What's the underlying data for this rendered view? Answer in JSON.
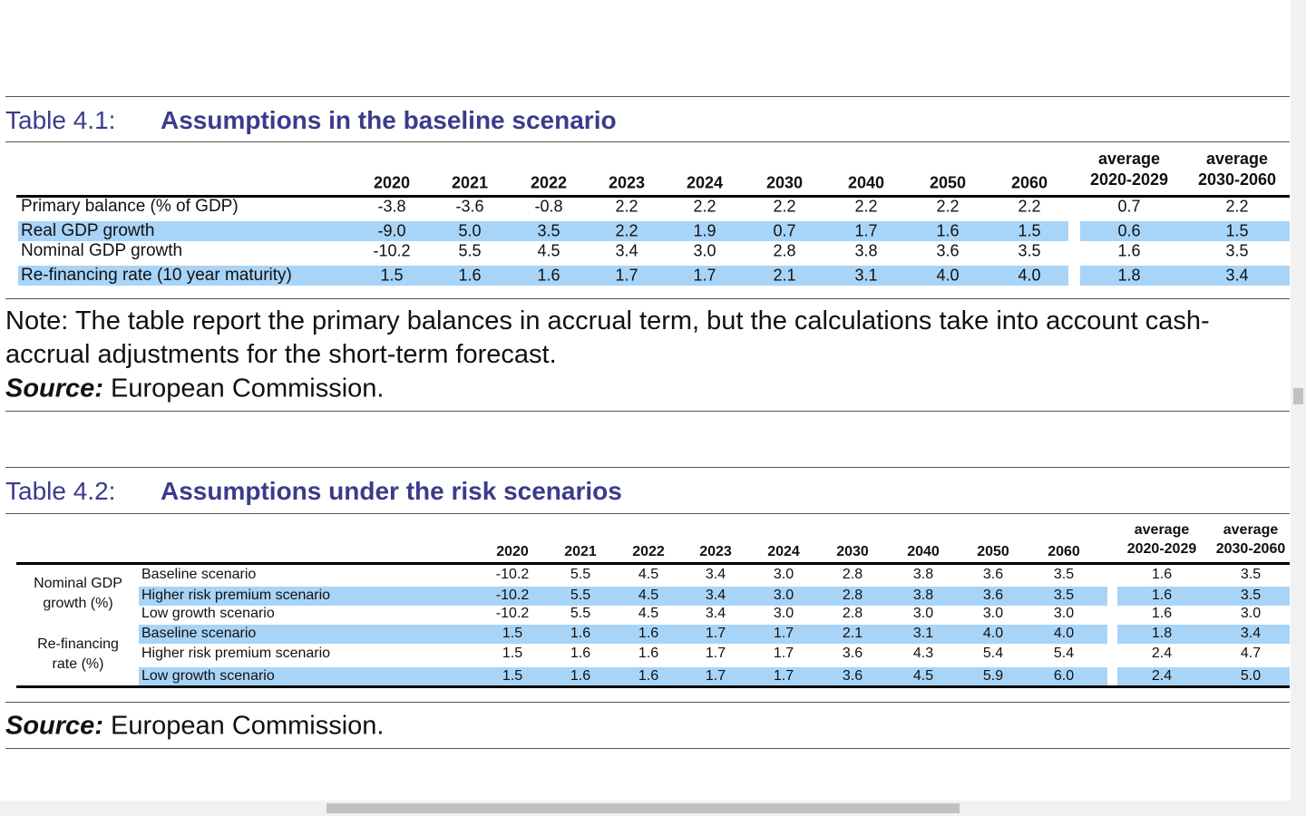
{
  "table1": {
    "label": "Table 4.1:",
    "title": "Assumptions in the baseline scenario",
    "columns": [
      "2020",
      "2021",
      "2022",
      "2023",
      "2024",
      "2030",
      "2040",
      "2050",
      "2060",
      "average 2020-2029",
      "average 2030-2060"
    ],
    "rows": [
      {
        "label": "Primary balance (% of GDP)",
        "values": [
          "-3.8",
          "-3.6",
          "-0.8",
          "2.2",
          "2.2",
          "2.2",
          "2.2",
          "2.2",
          "2.2",
          "0.7",
          "2.2"
        ]
      },
      {
        "label": "Real GDP growth",
        "values": [
          "-9.0",
          "5.0",
          "3.5",
          "2.2",
          "1.9",
          "0.7",
          "1.7",
          "1.6",
          "1.5",
          "0.6",
          "1.5"
        ]
      },
      {
        "label": "Nominal GDP growth",
        "values": [
          "-10.2",
          "5.5",
          "4.5",
          "3.4",
          "3.0",
          "2.8",
          "3.8",
          "3.6",
          "3.5",
          "1.6",
          "3.5"
        ]
      },
      {
        "label": "Re-financing rate (10 year maturity)",
        "values": [
          "1.5",
          "1.6",
          "1.6",
          "1.7",
          "1.7",
          "2.1",
          "3.1",
          "4.0",
          "4.0",
          "1.8",
          "3.4"
        ]
      }
    ]
  },
  "note": "Note: The table report the primary balances in accrual term, but the calculations take into account cash-accrual adjustments for the short-term forecast.",
  "source1": {
    "label": "Source:",
    "text": "European Commission."
  },
  "table2": {
    "label": "Table 4.2:",
    "title": "Assumptions under the risk scenarios",
    "columns": [
      "2020",
      "2021",
      "2022",
      "2023",
      "2024",
      "2030",
      "2040",
      "2050",
      "2060",
      "average 2020-2029",
      "average 2030-2060"
    ],
    "groups": [
      {
        "label": "Nominal GDP growth (%)",
        "rows": [
          {
            "label": "Baseline scenario",
            "values": [
              "-10.2",
              "5.5",
              "4.5",
              "3.4",
              "3.0",
              "2.8",
              "3.8",
              "3.6",
              "3.5",
              "1.6",
              "3.5"
            ]
          },
          {
            "label": "Higher risk premium scenario",
            "values": [
              "-10.2",
              "5.5",
              "4.5",
              "3.4",
              "3.0",
              "2.8",
              "3.8",
              "3.6",
              "3.5",
              "1.6",
              "3.5"
            ]
          },
          {
            "label": "Low growth scenario",
            "values": [
              "-10.2",
              "5.5",
              "4.5",
              "3.4",
              "3.0",
              "2.8",
              "3.0",
              "3.0",
              "3.0",
              "1.6",
              "3.0"
            ]
          }
        ]
      },
      {
        "label": "Re-financing rate (%)",
        "rows": [
          {
            "label": "Baseline scenario",
            "values": [
              "1.5",
              "1.6",
              "1.6",
              "1.7",
              "1.7",
              "2.1",
              "3.1",
              "4.0",
              "4.0",
              "1.8",
              "3.4"
            ]
          },
          {
            "label": "Higher risk premium scenario",
            "values": [
              "1.5",
              "1.6",
              "1.6",
              "1.7",
              "1.7",
              "3.6",
              "4.3",
              "5.4",
              "5.4",
              "2.4",
              "4.7"
            ]
          },
          {
            "label": "Low growth scenario",
            "values": [
              "1.5",
              "1.6",
              "1.6",
              "1.7",
              "1.7",
              "3.6",
              "4.5",
              "5.9",
              "6.0",
              "2.4",
              "5.0"
            ]
          }
        ]
      }
    ]
  },
  "source2": {
    "label": "Source:",
    "text": "European Commission."
  }
}
